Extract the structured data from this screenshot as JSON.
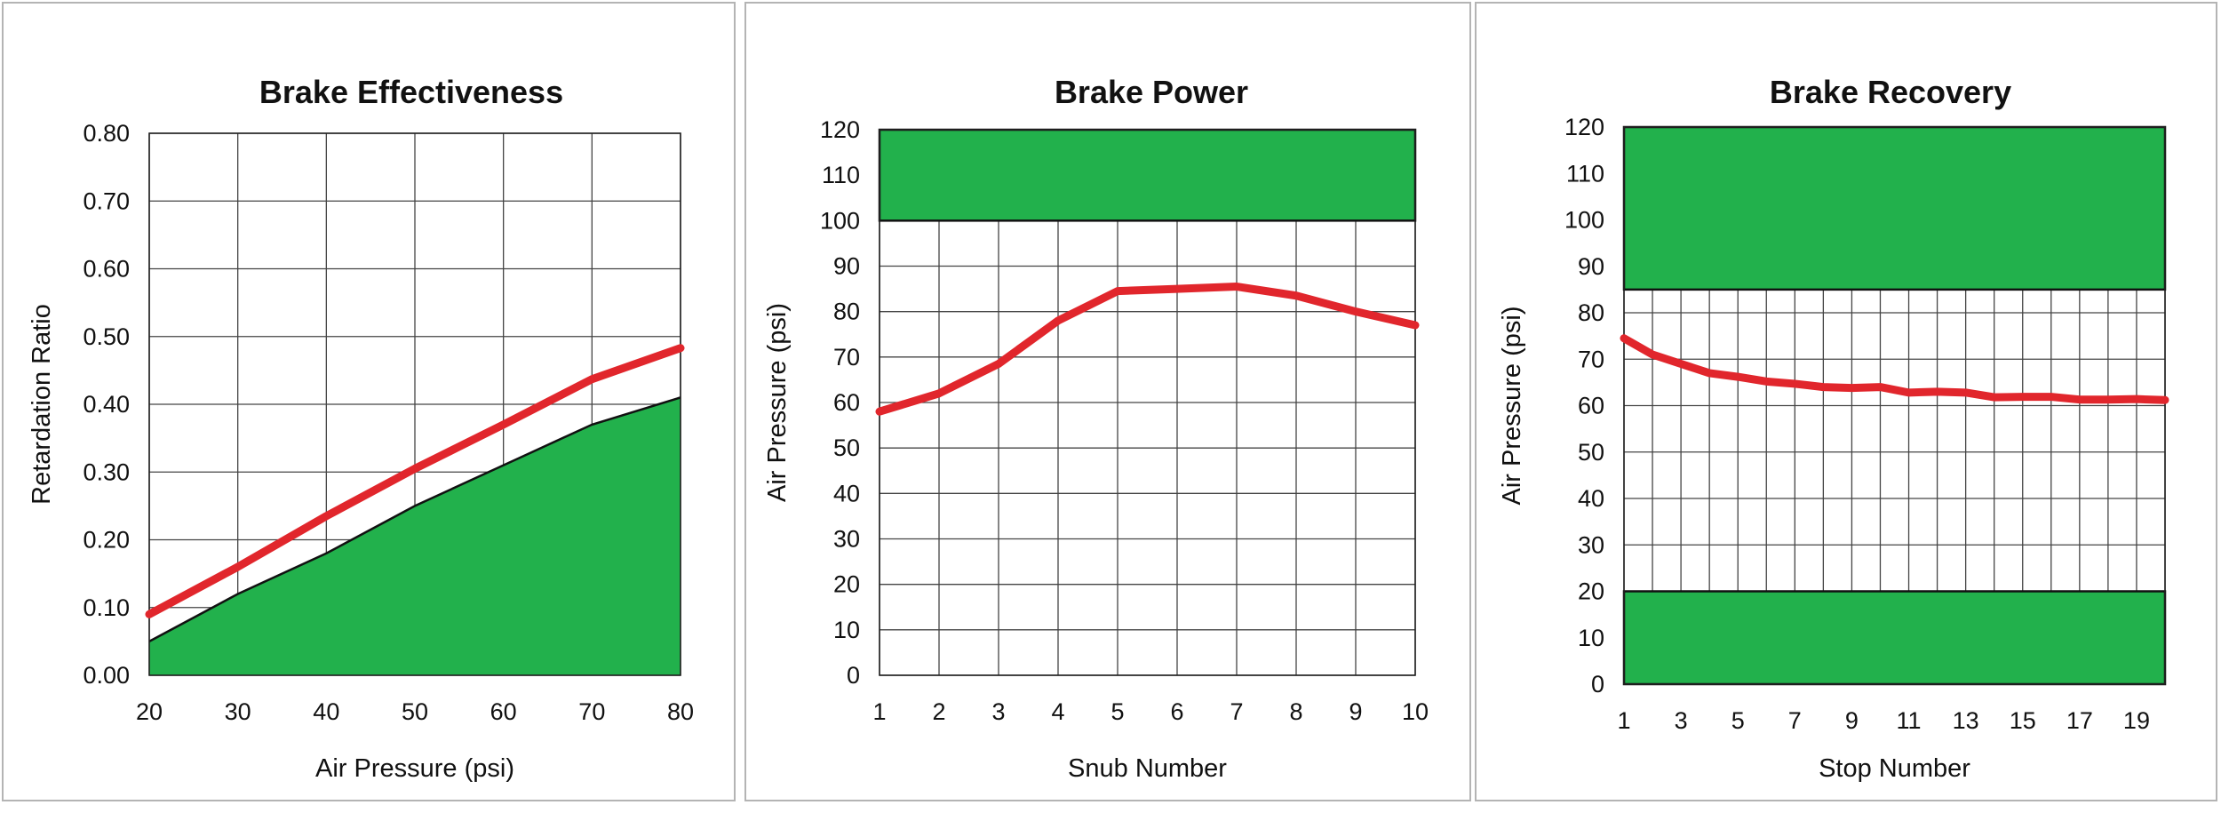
{
  "colors": {
    "accent_band": "#22b14c",
    "series_line": "#e1262c"
  },
  "chart_data": [
    {
      "type": "area",
      "title": "Brake Effectiveness",
      "xlabel": "Air Pressure (psi)",
      "ylabel": "Retardation Ratio",
      "xlim": [
        20,
        80
      ],
      "ylim": [
        0,
        0.8
      ],
      "x_ticks": [
        "20",
        "30",
        "40",
        "50",
        "60",
        "70",
        "80"
      ],
      "y_ticks": [
        "0.00",
        "0.10",
        "0.20",
        "0.30",
        "0.40",
        "0.50",
        "0.60",
        "0.70",
        "0.80"
      ],
      "grid": true,
      "x": [
        20,
        30,
        40,
        50,
        60,
        70,
        80
      ],
      "series": [
        {
          "role": "line",
          "color": "#e1262c",
          "values": [
            0.09,
            0.16,
            0.235,
            0.305,
            0.37,
            0.437,
            0.483
          ]
        },
        {
          "role": "area",
          "color": "#22b14c",
          "values": [
            0.05,
            0.12,
            0.18,
            0.25,
            0.31,
            0.37,
            0.41
          ]
        }
      ],
      "bands": []
    },
    {
      "type": "line",
      "title": "Brake Power",
      "xlabel": "Snub Number",
      "ylabel": "Air Pressure (psi)",
      "xlim": [
        1,
        10
      ],
      "ylim": [
        0,
        120
      ],
      "x_ticks": [
        "1",
        "2",
        "3",
        "4",
        "5",
        "6",
        "7",
        "8",
        "9",
        "10"
      ],
      "y_ticks": [
        "0",
        "10",
        "20",
        "30",
        "40",
        "50",
        "60",
        "70",
        "80",
        "90",
        "100",
        "110",
        "120"
      ],
      "grid": true,
      "x": [
        1,
        2,
        3,
        4,
        5,
        6,
        7,
        8,
        9,
        10
      ],
      "series": [
        {
          "role": "line",
          "color": "#e1262c",
          "values": [
            58,
            62,
            68.5,
            78,
            84.5,
            85,
            85.5,
            83.5,
            80,
            77
          ]
        }
      ],
      "bands": [
        {
          "from": 100,
          "to": 120,
          "color": "#22b14c"
        }
      ]
    },
    {
      "type": "line",
      "title": "Brake Recovery",
      "xlabel": "Stop Number",
      "ylabel": "Air Pressure (psi)",
      "xlim": [
        1,
        20
      ],
      "ylim": [
        0,
        120
      ],
      "x_ticks": [
        "1",
        "3",
        "5",
        "7",
        "9",
        "11",
        "13",
        "15",
        "17",
        "19"
      ],
      "y_ticks": [
        "0",
        "10",
        "20",
        "30",
        "40",
        "50",
        "60",
        "70",
        "80",
        "90",
        "100",
        "110",
        "120"
      ],
      "grid": true,
      "x": [
        1,
        2,
        3,
        4,
        5,
        6,
        7,
        8,
        9,
        10,
        11,
        12,
        13,
        14,
        15,
        16,
        17,
        18,
        19,
        20
      ],
      "series": [
        {
          "role": "line",
          "color": "#e1262c",
          "values": [
            74.5,
            71,
            69,
            67,
            66.2,
            65.2,
            64.7,
            64,
            63.8,
            64,
            62.8,
            63,
            62.8,
            61.8,
            61.9,
            61.9,
            61.3,
            61.3,
            61.4,
            61.2
          ]
        }
      ],
      "bands": [
        {
          "from": 85,
          "to": 120,
          "color": "#22b14c"
        },
        {
          "from": 0,
          "to": 20,
          "color": "#22b14c"
        }
      ]
    }
  ]
}
